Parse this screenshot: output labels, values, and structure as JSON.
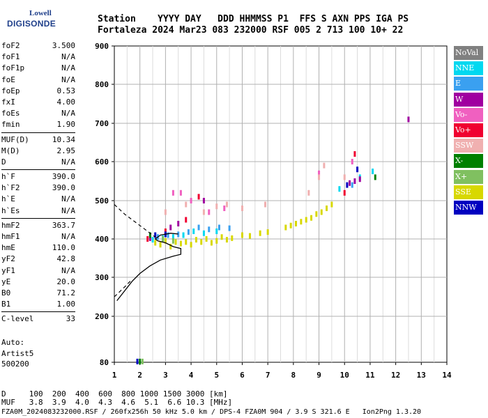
{
  "logo": {
    "line1": "Lowell",
    "line2": "DIGISONDE"
  },
  "header": {
    "line1": "Station    YYYY DAY   DDD HHMMSS P1  FFS S AXN PPS IGA PS",
    "line2": "Fortaleza 2024 Mar23 083 232000 RSF 005 2 713 100 10+ 22"
  },
  "params": [
    [
      {
        "k": "foF2",
        "v": "3.500"
      },
      {
        "k": "foF1",
        "v": "N/A"
      },
      {
        "k": "foF1p",
        "v": "N/A"
      },
      {
        "k": "foE",
        "v": "N/A"
      },
      {
        "k": "foEp",
        "v": "0.53"
      },
      {
        "k": "fxI",
        "v": "4.00"
      },
      {
        "k": "foEs",
        "v": "N/A"
      },
      {
        "k": "fmin",
        "v": "1.90"
      }
    ],
    [
      {
        "k": "MUF(D)",
        "v": "10.34"
      },
      {
        "k": "M(D)",
        "v": "2.95"
      },
      {
        "k": "D",
        "v": "N/A"
      }
    ],
    [
      {
        "k": "h`F",
        "v": "390.0"
      },
      {
        "k": "h`F2",
        "v": "390.0"
      },
      {
        "k": "h`E",
        "v": "N/A"
      },
      {
        "k": "h`Es",
        "v": "N/A"
      }
    ],
    [
      {
        "k": "hmF2",
        "v": "363.7"
      },
      {
        "k": "hmF1",
        "v": "N/A"
      },
      {
        "k": "hmE",
        "v": "110.0"
      },
      {
        "k": "yF2",
        "v": "42.8"
      },
      {
        "k": "yF1",
        "v": "N/A"
      },
      {
        "k": "yE",
        "v": "20.0"
      },
      {
        "k": "B0",
        "v": "71.2"
      },
      {
        "k": "B1",
        "v": "1.00"
      }
    ],
    [
      {
        "k": "C-level",
        "v": "33"
      }
    ]
  ],
  "auto": {
    "l1": "Auto:",
    "l2": "Artist5",
    "l3": "500200"
  },
  "legend": [
    {
      "label": "NoVal",
      "color": "#808080"
    },
    {
      "label": "NNE",
      "color": "#00d8f0"
    },
    {
      "label": "E",
      "color": "#3aa0f0"
    },
    {
      "label": "W",
      "color": "#a000a0"
    },
    {
      "label": "Vo-",
      "color": "#f060c0"
    },
    {
      "label": "Vo+",
      "color": "#f00030"
    },
    {
      "label": "SSW",
      "color": "#f0b0b0"
    },
    {
      "label": "X-",
      "color": "#008000"
    },
    {
      "label": "X+",
      "color": "#80c060"
    },
    {
      "label": "SSE",
      "color": "#d8d800"
    },
    {
      "label": "NNW",
      "color": "#0000c0"
    }
  ],
  "bottom": {
    "line1": "D     100  200  400  600  800 1000 1500 3000 [km]",
    "line2": "MUF   3.8  3.9  4.0  4.3  4.6  5.1  6.6 10.3 [MHz]"
  },
  "footer": "FZA0M_2024083232000.RSF / 260fx256h 50 kHz 5.0 km / DPS-4 FZA0M 904 / 3.9 S 321.6 E   Ion2Png 1.3.20",
  "chart_data": {
    "type": "scatter",
    "x_ticks": [
      "1",
      "2",
      "3",
      "4",
      "5",
      "6",
      "7",
      "8",
      "9",
      "10",
      "11",
      "12",
      "13",
      "14"
    ],
    "y_ticks": [
      "80",
      "200",
      "300",
      "400",
      "500",
      "600",
      "700",
      "800",
      "900"
    ],
    "xlim": [
      1,
      14
    ],
    "ylim": [
      80,
      900
    ],
    "grid": true,
    "series": [
      {
        "name": "SSE",
        "color": "#d8d800",
        "points": [
          [
            2.6,
            390
          ],
          [
            2.8,
            385
          ],
          [
            3.0,
            395
          ],
          [
            3.2,
            380
          ],
          [
            3.4,
            392
          ],
          [
            3.6,
            388
          ],
          [
            3.8,
            392
          ],
          [
            4.0,
            385
          ],
          [
            4.2,
            398
          ],
          [
            4.4,
            392
          ],
          [
            4.6,
            400
          ],
          [
            4.8,
            390
          ],
          [
            5.0,
            395
          ],
          [
            5.2,
            405
          ],
          [
            5.4,
            398
          ],
          [
            5.6,
            402
          ],
          [
            6.0,
            410
          ],
          [
            6.3,
            408
          ],
          [
            6.7,
            415
          ],
          [
            7.0,
            418
          ],
          [
            7.7,
            430
          ],
          [
            7.9,
            435
          ],
          [
            8.1,
            440
          ],
          [
            8.3,
            445
          ],
          [
            8.5,
            450
          ],
          [
            8.7,
            455
          ],
          [
            8.9,
            465
          ],
          [
            9.1,
            470
          ],
          [
            9.3,
            480
          ],
          [
            9.5,
            490
          ]
        ]
      },
      {
        "name": "NNE",
        "color": "#00d8f0",
        "points": [
          [
            2.5,
            398
          ],
          [
            2.9,
            402
          ],
          [
            3.3,
            405
          ],
          [
            3.7,
            410
          ],
          [
            4.1,
            420
          ],
          [
            4.5,
            415
          ],
          [
            5.0,
            420
          ],
          [
            9.8,
            530
          ],
          [
            10.6,
            560
          ],
          [
            11.1,
            575
          ]
        ]
      },
      {
        "name": "E",
        "color": "#3aa0f0",
        "points": [
          [
            2.7,
            405
          ],
          [
            3.1,
            410
          ],
          [
            3.5,
            412
          ],
          [
            3.9,
            418
          ],
          [
            4.3,
            430
          ],
          [
            4.7,
            425
          ],
          [
            5.1,
            430
          ],
          [
            5.5,
            428
          ],
          [
            10.3,
            540
          ]
        ]
      },
      {
        "name": "W",
        "color": "#a000a0",
        "points": [
          [
            2.4,
            402
          ],
          [
            3.2,
            430
          ],
          [
            3.5,
            440
          ],
          [
            4.5,
            500
          ],
          [
            10.2,
            545
          ],
          [
            10.4,
            550
          ],
          [
            10.6,
            555
          ],
          [
            12.5,
            710
          ]
        ]
      },
      {
        "name": "Vo-",
        "color": "#f060c0",
        "points": [
          [
            3.3,
            520
          ],
          [
            3.6,
            520
          ],
          [
            4.0,
            500
          ],
          [
            4.7,
            470
          ],
          [
            5.3,
            480
          ],
          [
            9.0,
            570
          ],
          [
            10.3,
            600
          ]
        ]
      },
      {
        "name": "Vo+",
        "color": "#f00030",
        "points": [
          [
            2.3,
            400
          ],
          [
            3.0,
            420
          ],
          [
            3.8,
            450
          ],
          [
            4.3,
            510
          ],
          [
            10.0,
            520
          ],
          [
            10.4,
            620
          ]
        ]
      },
      {
        "name": "SSW",
        "color": "#f0b0b0",
        "points": [
          [
            3.0,
            470
          ],
          [
            3.8,
            490
          ],
          [
            4.5,
            470
          ],
          [
            5.0,
            485
          ],
          [
            5.4,
            490
          ],
          [
            6.0,
            480
          ],
          [
            6.9,
            490
          ],
          [
            8.6,
            520
          ],
          [
            9.0,
            560
          ],
          [
            9.2,
            590
          ],
          [
            10.0,
            560
          ]
        ]
      },
      {
        "name": "X-",
        "color": "#008000",
        "points": [
          [
            2.0,
            82
          ],
          [
            2.4,
            410
          ],
          [
            11.2,
            560
          ]
        ]
      },
      {
        "name": "X+",
        "color": "#80c060",
        "points": [
          [
            2.1,
            82
          ],
          [
            2.9,
            400
          ],
          [
            3.3,
            395
          ]
        ]
      },
      {
        "name": "NNW",
        "color": "#0000c0",
        "points": [
          [
            1.9,
            82
          ],
          [
            2.6,
            410
          ],
          [
            3.0,
            412
          ],
          [
            10.1,
            540
          ],
          [
            10.5,
            580
          ]
        ]
      }
    ],
    "profile_solid": [
      [
        1.1,
        240
      ],
      [
        1.7,
        290
      ],
      [
        2.0,
        310
      ],
      [
        2.4,
        330
      ],
      [
        2.8,
        345
      ],
      [
        3.3,
        355
      ],
      [
        3.6,
        360
      ],
      [
        3.6,
        375
      ],
      [
        3.3,
        380
      ],
      [
        3.0,
        390
      ],
      [
        2.7,
        395
      ],
      [
        2.6,
        400
      ],
      [
        2.8,
        410
      ],
      [
        3.2,
        415
      ],
      [
        3.5,
        413
      ]
    ],
    "profile_dashed_low": [
      [
        1.0,
        250
      ],
      [
        1.4,
        275
      ],
      [
        1.7,
        295
      ]
    ],
    "profile_dashed_high": [
      [
        1.0,
        490
      ],
      [
        1.4,
        465
      ],
      [
        1.9,
        440
      ],
      [
        2.3,
        420
      ],
      [
        2.6,
        405
      ]
    ]
  }
}
